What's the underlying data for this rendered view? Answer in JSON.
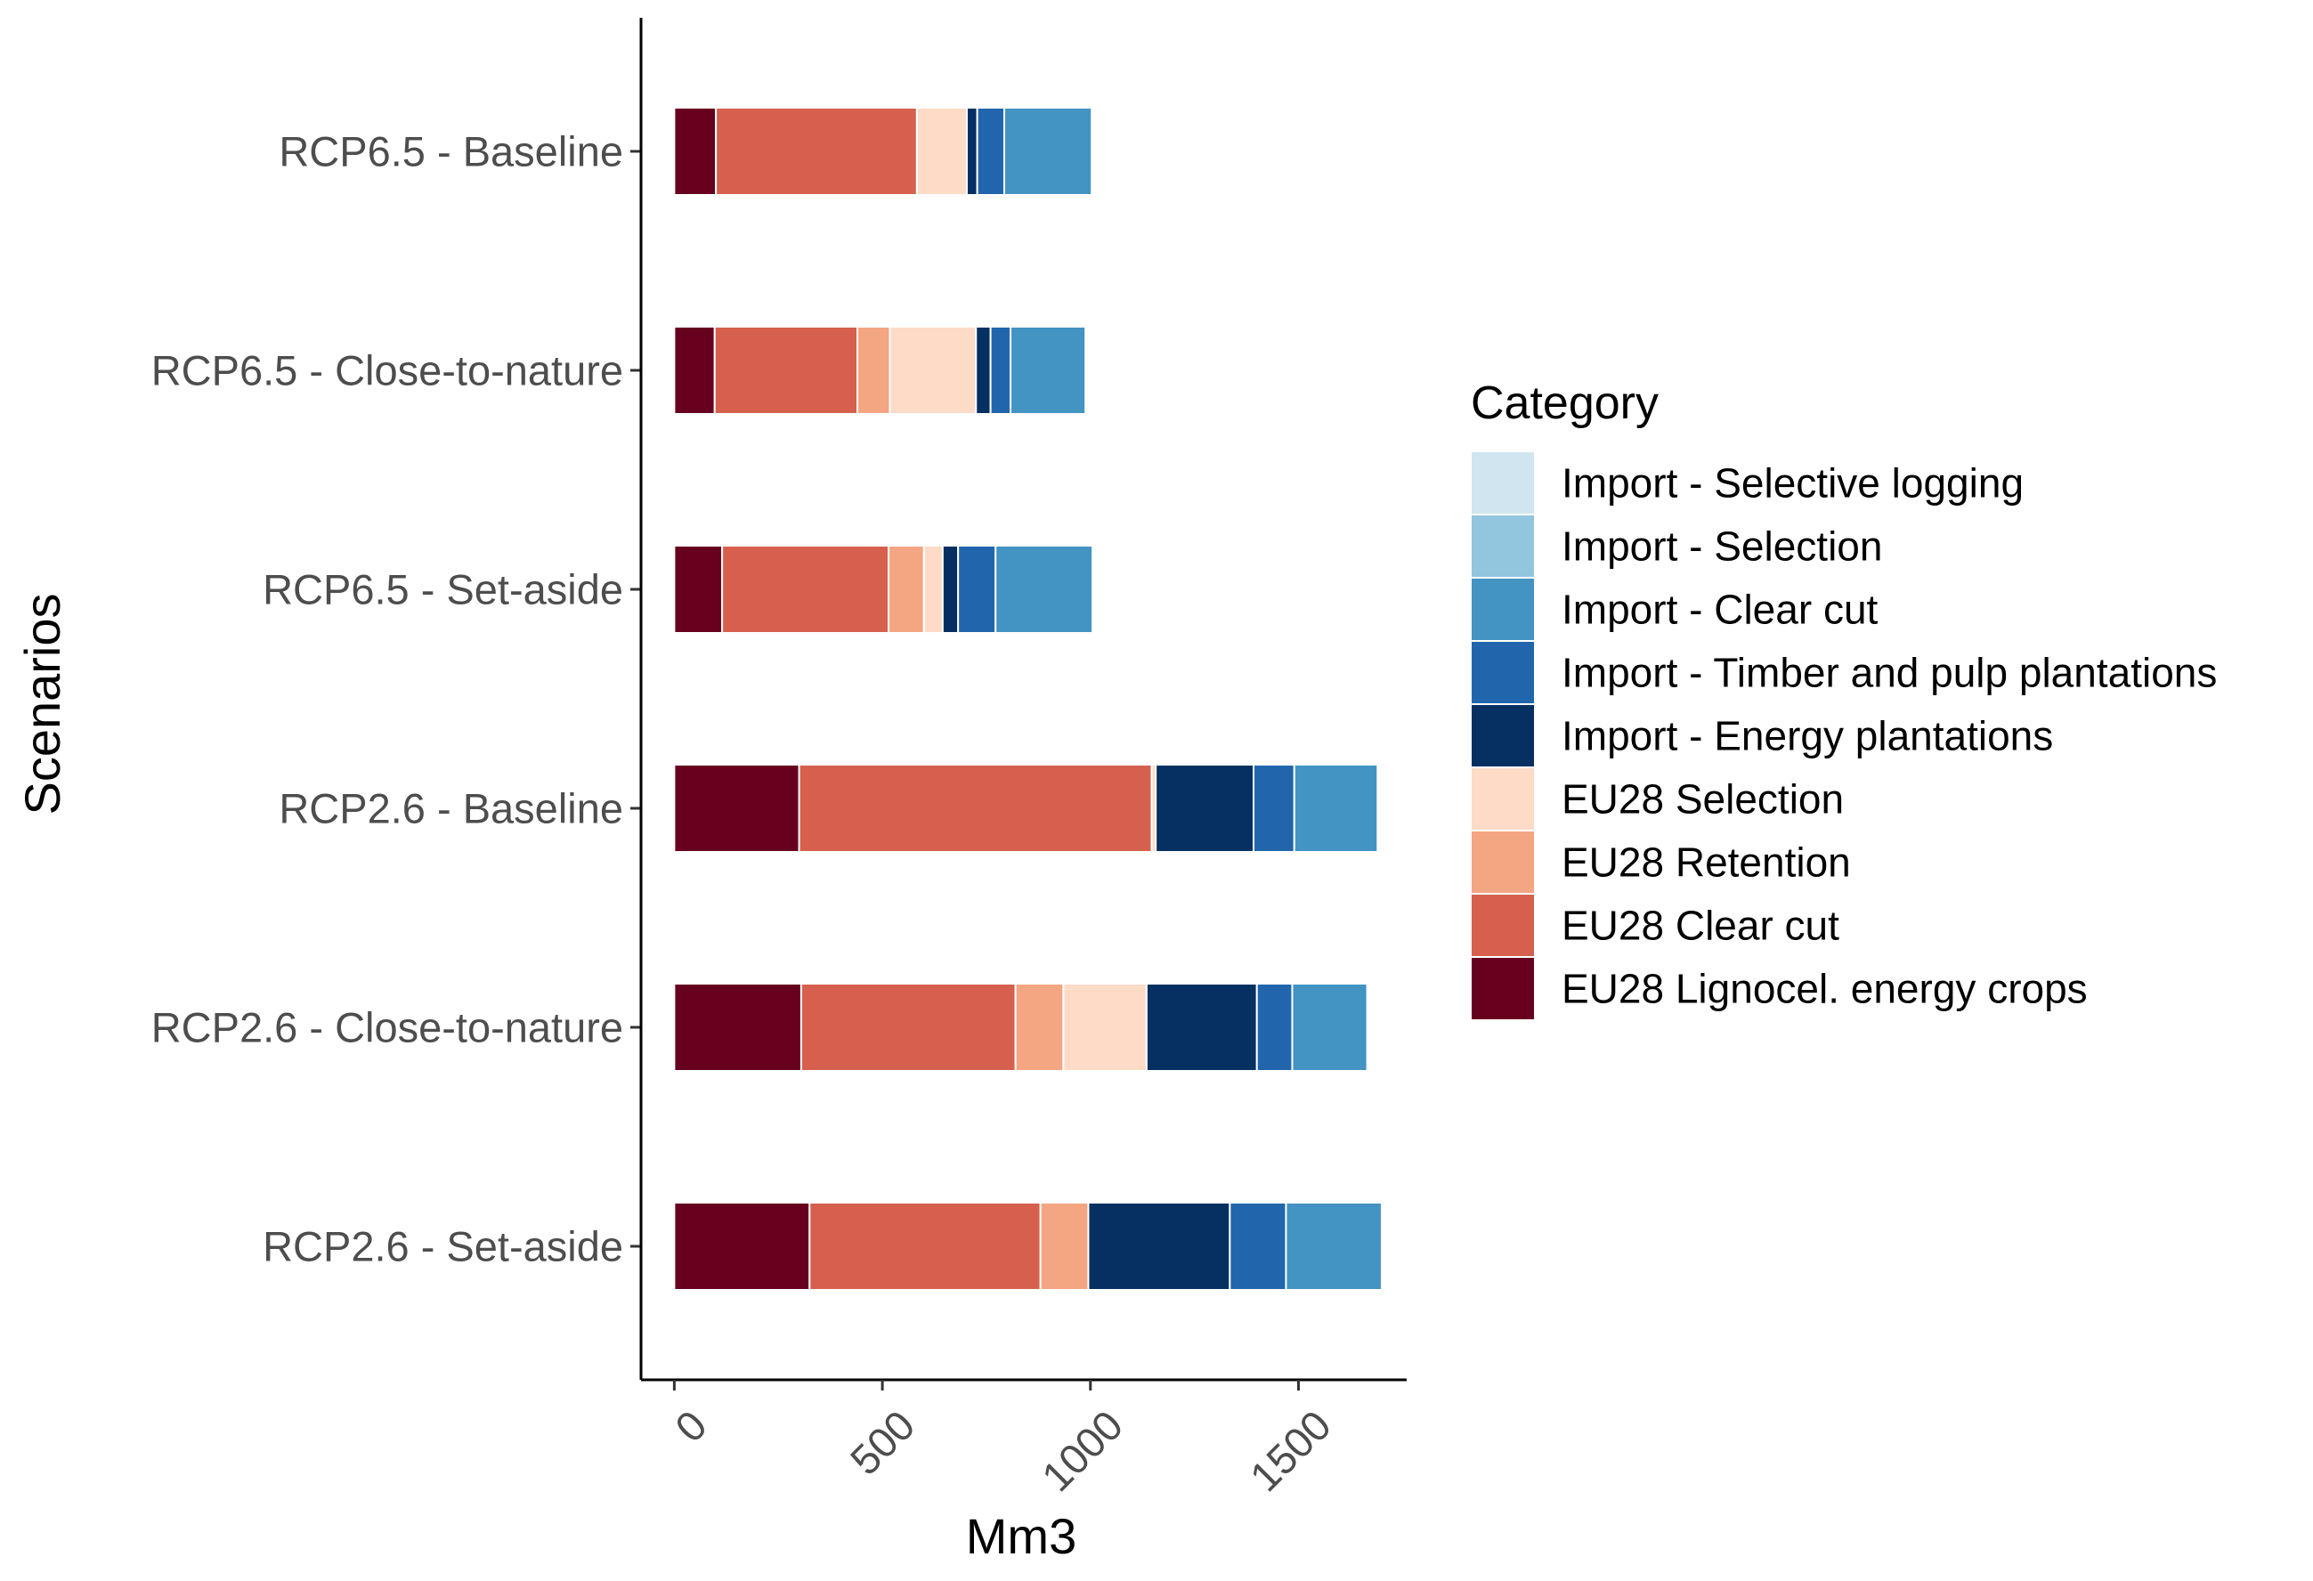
{
  "chart_data": {
    "type": "bar",
    "orientation": "horizontal",
    "stacked": true,
    "xlabel": "Mm3",
    "ylabel": "Scenarios",
    "xlim": [
      -80,
      1760
    ],
    "xticks": [
      0,
      500,
      1000,
      1500
    ],
    "xtick_labels": [
      "0",
      "500",
      "1000",
      "1500"
    ],
    "grid": false,
    "legend_title": "Category",
    "legend_position": "right",
    "categories": [
      "RCP6.5 - Baseline",
      "RCP6.5 - Close-to-nature",
      "RCP6.5 - Set-aside",
      "RCP2.6 - Baseline",
      "RCP2.6 - Close-to-nature",
      "RCP2.6 - Set-aside"
    ],
    "series": [
      {
        "name": "EU28 Lignocel. energy crops",
        "color": "#67001f",
        "values": [
          100,
          97,
          115,
          300,
          305,
          325
        ]
      },
      {
        "name": "EU28 Clear cut",
        "color": "#d6604d",
        "values": [
          483,
          343,
          400,
          847,
          515,
          555
        ]
      },
      {
        "name": "EU28 Retention",
        "color": "#f4a582",
        "values": [
          0,
          78,
          85,
          0,
          115,
          115
        ]
      },
      {
        "name": "EU28 Selection",
        "color": "#fddbc7",
        "values": [
          120,
          207,
          45,
          10,
          200,
          0
        ]
      },
      {
        "name": "Import - Energy plantations",
        "color": "#053061",
        "values": [
          25,
          35,
          37,
          235,
          265,
          340
        ]
      },
      {
        "name": "Import - Timber and pulp plantations",
        "color": "#2166ac",
        "values": [
          65,
          48,
          90,
          98,
          85,
          135
        ]
      },
      {
        "name": "Import - Clear cut",
        "color": "#4393c3",
        "values": [
          210,
          180,
          233,
          200,
          180,
          230
        ]
      },
      {
        "name": "Import - Selection",
        "color": "#92c5de",
        "values": [
          0,
          0,
          0,
          0,
          0,
          0
        ]
      },
      {
        "name": "Import - Selective logging",
        "color": "#d1e5f0",
        "values": [
          0,
          0,
          0,
          0,
          0,
          0
        ]
      }
    ],
    "legend_order": [
      "Import - Selective logging",
      "Import - Selection",
      "Import - Clear cut",
      "Import - Timber and pulp plantations",
      "Import - Energy plantations",
      "EU28 Selection",
      "EU28 Retention",
      "EU28 Clear cut",
      "EU28 Lignocel. energy crops"
    ]
  }
}
